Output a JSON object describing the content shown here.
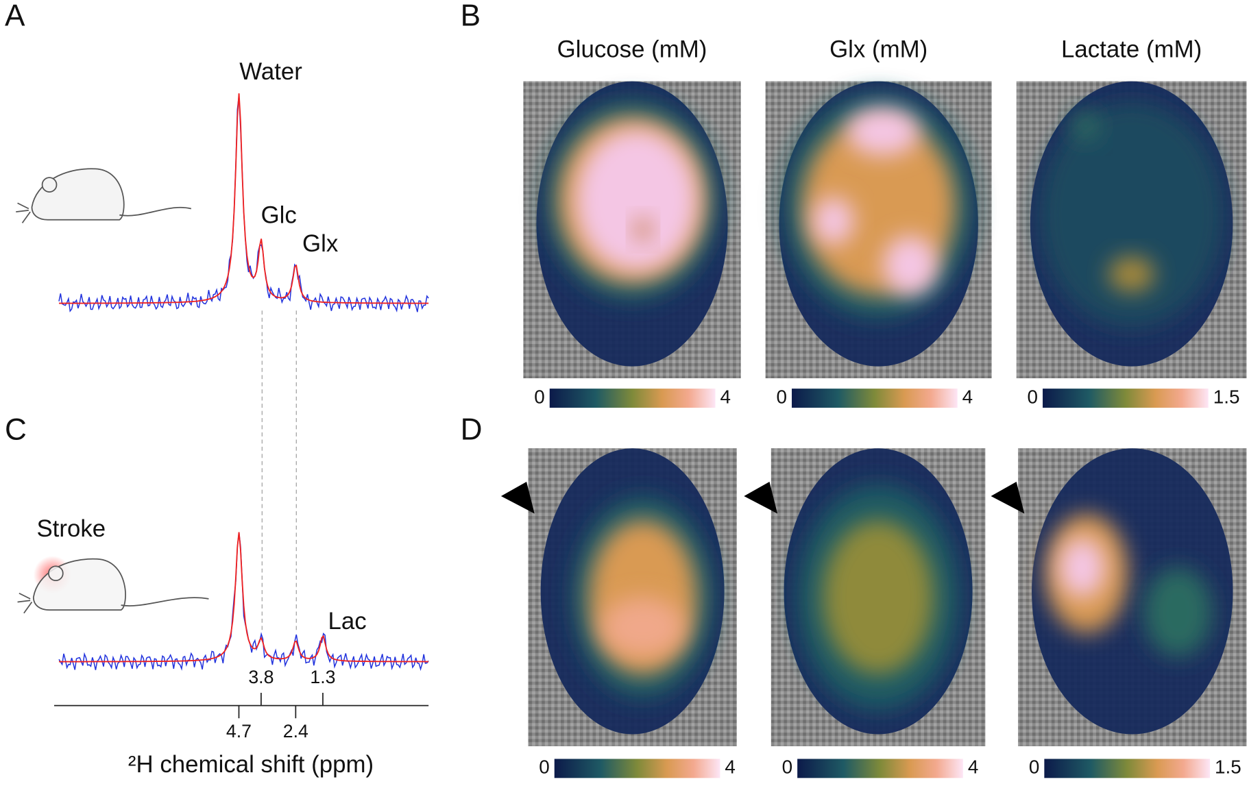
{
  "panel_labels": [
    "A",
    "B",
    "C",
    "D"
  ],
  "spectrum_a": {
    "peak_labels": [
      "Water",
      "Glc",
      "Glx"
    ]
  },
  "spectrum_c": {
    "condition": "Stroke",
    "peak_labels": [
      "Lac"
    ]
  },
  "shift_axis": {
    "label": "²H chemical shift (ppm)",
    "xlim": [
      12.18,
      -2.98
    ],
    "ticks": [
      4.7,
      3.8,
      2.4,
      1.3
    ]
  },
  "maps": {
    "titles": [
      "Glucose (mM)",
      "Glx (mM)",
      "Lactate (mM)"
    ],
    "colorbars": [
      {
        "min": 0,
        "max": 4
      },
      {
        "min": 0,
        "max": 4
      },
      {
        "min": 0,
        "max": 1.5
      }
    ]
  }
}
